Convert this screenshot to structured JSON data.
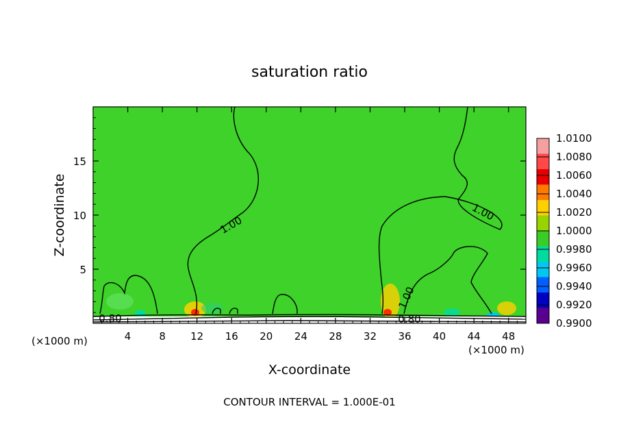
{
  "chart_data": {
    "type": "heatmap",
    "title": "saturation ratio",
    "xlabel": "X-coordinate",
    "ylabel": "Z-coordinate",
    "x_unit_left": "(×1000 m)",
    "x_unit_right": "(×1000 m)",
    "xlim": [
      0,
      50
    ],
    "ylim": [
      0,
      20
    ],
    "xticks": [
      "4",
      "8",
      "12",
      "16",
      "20",
      "24",
      "28",
      "32",
      "36",
      "40",
      "44",
      "48"
    ],
    "yticks": [
      "5",
      "10",
      "15"
    ],
    "contour_labels": [
      "1.00",
      "1.00",
      "1.00",
      "0.80",
      "0.80"
    ],
    "footnote": "CONTOUR INTERVAL = 1.000E-01",
    "colorbar": {
      "levels": [
        "1.0100",
        "1.0080",
        "1.0060",
        "1.0040",
        "1.0020",
        "1.0000",
        "0.9980",
        "0.9960",
        "0.9940",
        "0.9920",
        "0.9900"
      ],
      "colors": [
        "#f4a0a0",
        "#ff4848",
        "#e80000",
        "#ff7a00",
        "#ffd000",
        "#9ad400",
        "#3ccc28",
        "#00dca0",
        "#00c8f0",
        "#0060ff",
        "#0000c0",
        "#5a0090"
      ]
    },
    "field_color": "#3ed22a"
  }
}
